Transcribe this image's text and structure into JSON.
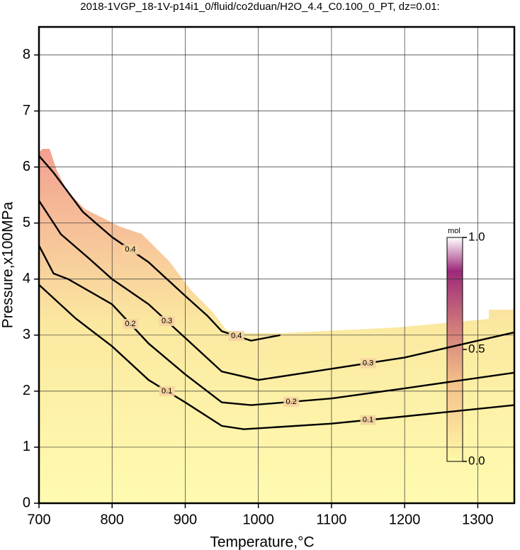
{
  "chart_data": {
    "type": "contour",
    "title": "2018-1VGP_18-1V-p14i1_0/fluid/co2duan/H2O_4.4_C0.100_0_PT, dz=0.01:",
    "x_label": "Temperature,°C",
    "y_label": "Pressure,x100MPa",
    "xlim": [
      700,
      1350
    ],
    "ylim": [
      0,
      8.5
    ],
    "xticks": [
      700,
      800,
      900,
      1000,
      1100,
      1200,
      1300
    ],
    "yticks": [
      0,
      1,
      2,
      3,
      4,
      5,
      6,
      7,
      8
    ],
    "grid": true,
    "contours": [
      {
        "level": 0.1,
        "x": [
          700,
          750,
          800,
          850,
          900,
          950,
          980,
          1100,
          1200,
          1350
        ],
        "y": [
          3.9,
          3.3,
          2.8,
          2.2,
          1.8,
          1.38,
          1.32,
          1.42,
          1.55,
          1.75
        ]
      },
      {
        "level": 0.2,
        "x": [
          700,
          720,
          740,
          800,
          850,
          900,
          950,
          990,
          1100,
          1200,
          1350
        ],
        "y": [
          4.6,
          4.1,
          4.0,
          3.55,
          2.85,
          2.3,
          1.8,
          1.75,
          1.87,
          2.05,
          2.33
        ]
      },
      {
        "level": 0.3,
        "x": [
          700,
          730,
          770,
          800,
          850,
          900,
          950,
          1000,
          1100,
          1200,
          1300,
          1350
        ],
        "y": [
          5.4,
          4.8,
          4.35,
          4.0,
          3.55,
          2.95,
          2.35,
          2.2,
          2.4,
          2.6,
          2.9,
          3.05
        ]
      },
      {
        "level": 0.4,
        "x": [
          700,
          720,
          760,
          800,
          850,
          900,
          930,
          950,
          990,
          1030
        ],
        "y": [
          6.2,
          5.9,
          5.2,
          4.75,
          4.3,
          3.7,
          3.35,
          3.07,
          2.9,
          3.0
        ]
      }
    ],
    "colorbar": {
      "label": "mol",
      "lim": [
        0,
        1
      ],
      "ticks": [
        {
          "value": 0,
          "label": "0.0"
        },
        0.5,
        {
          "value": 1,
          "label": "1.0"
        }
      ]
    }
  }
}
